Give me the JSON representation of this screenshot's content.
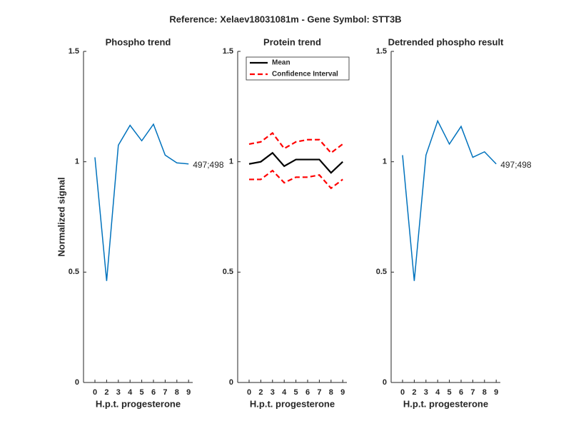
{
  "title": "Reference:  Xelaev18031081m - Gene Symbol:  STT3B",
  "chart_data": [
    {
      "type": "line",
      "title": "Phospho trend",
      "xlabel": "H.p.t. progesterone",
      "ylabel": "Normalized signal",
      "categories": [
        "0",
        "2",
        "3",
        "4",
        "5",
        "6",
        "7",
        "8",
        "9"
      ],
      "series": [
        {
          "name": "Phospho",
          "color": "#0072bd",
          "values": [
            1.02,
            0.46,
            1.075,
            1.165,
            1.095,
            1.17,
            1.03,
            0.995,
            0.99
          ]
        }
      ],
      "annotation": "497;498",
      "ylim": [
        0,
        1.5
      ],
      "yticks": [
        0,
        0.5,
        1,
        1.5
      ]
    },
    {
      "type": "line",
      "title": "Protein trend",
      "xlabel": "H.p.t. progesterone",
      "categories": [
        "0",
        "2",
        "3",
        "4",
        "5",
        "6",
        "7",
        "8",
        "9"
      ],
      "series": [
        {
          "name": "Mean",
          "color": "#000000",
          "values": [
            0.99,
            1.0,
            1.04,
            0.98,
            1.01,
            1.01,
            1.01,
            0.95,
            1.0
          ]
        },
        {
          "name": "Confidence Interval",
          "color": "#ff0000",
          "dashed": true,
          "values": [
            1.08,
            1.09,
            1.13,
            1.06,
            1.09,
            1.1,
            1.1,
            1.04,
            1.08
          ],
          "lower": [
            0.92,
            0.92,
            0.96,
            0.905,
            0.93,
            0.93,
            0.94,
            0.88,
            0.92
          ]
        }
      ],
      "legend": "top-left",
      "ylim": [
        0,
        1.5
      ],
      "yticks": [
        0,
        0.5,
        1,
        1.5
      ]
    },
    {
      "type": "line",
      "title": "Detrended phospho result",
      "xlabel": "H.p.t. progesterone",
      "categories": [
        "0",
        "2",
        "3",
        "4",
        "5",
        "6",
        "7",
        "8",
        "9"
      ],
      "series": [
        {
          "name": "Detrended",
          "color": "#0072bd",
          "values": [
            1.03,
            0.46,
            1.03,
            1.185,
            1.08,
            1.16,
            1.02,
            1.045,
            0.99
          ]
        }
      ],
      "annotation": "497;498",
      "ylim": [
        0,
        1.5
      ],
      "yticks": [
        0,
        0.5,
        1,
        1.5
      ]
    }
  ]
}
